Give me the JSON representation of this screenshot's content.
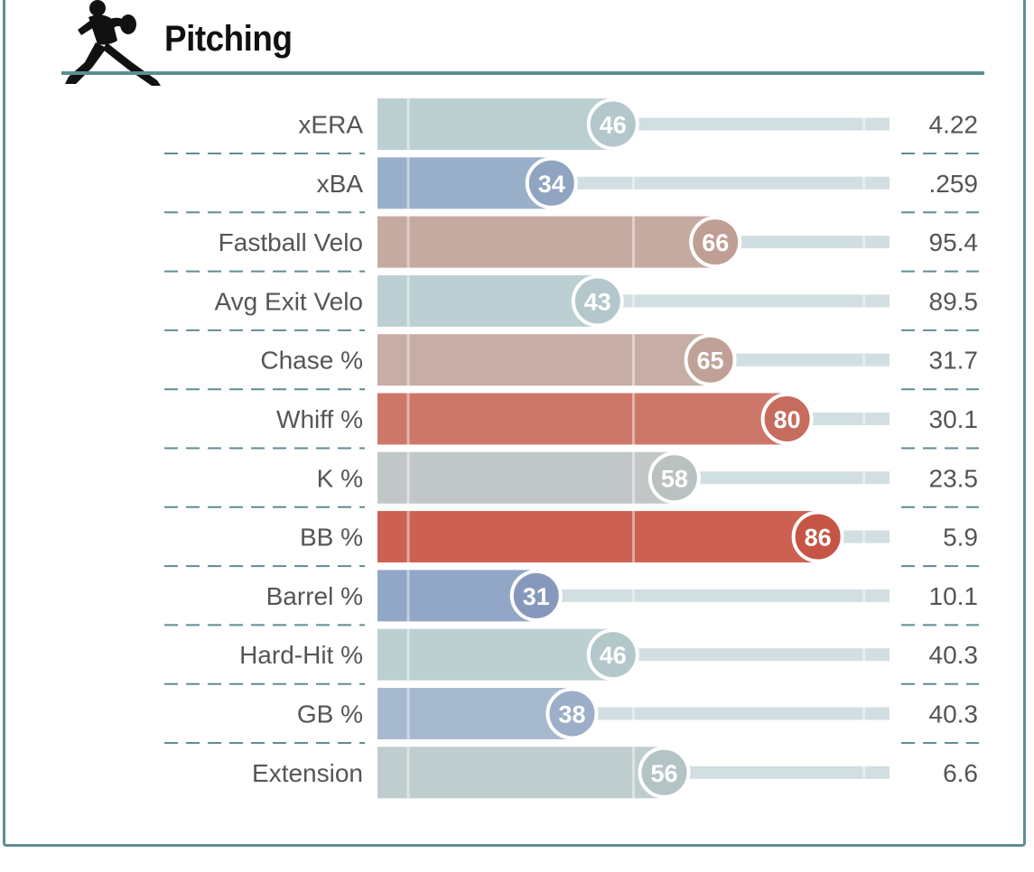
{
  "header": {
    "title": "Pitching"
  },
  "colors": {
    "border": "#5f8e93",
    "track": "#d1dfe2",
    "separator": "#5f8e93"
  },
  "chart_data": {
    "type": "bar",
    "orientation": "horizontal",
    "title": "Pitching",
    "xlim": [
      0,
      100
    ],
    "grid": true,
    "categories": [
      "xERA",
      "xBA",
      "Fastball Velo",
      "Avg Exit Velo",
      "Chase %",
      "Whiff %",
      "K %",
      "BB %",
      "Barrel %",
      "Hard-Hit %",
      "GB %",
      "Extension"
    ],
    "percentiles": [
      46,
      34,
      66,
      43,
      65,
      80,
      58,
      86,
      31,
      46,
      38,
      56
    ],
    "values": [
      "4.22",
      ".259",
      "95.4",
      "89.5",
      "31.7",
      "30.1",
      "23.5",
      "5.9",
      "10.1",
      "40.3",
      "40.3",
      "6.6"
    ],
    "bar_colors": [
      "#bccfd1",
      "#9aafc9",
      "#c5aaa2",
      "#bccfd2",
      "#c6ada5",
      "#cd7769",
      "#c1c7c7",
      "#cd6151",
      "#92a7c7",
      "#bccfd1",
      "#a7b9cf",
      "#bfcdcf"
    ],
    "badge_colors": [
      "#b4c8cb",
      "#8ea4c0",
      "#bf9e94",
      "#b4c8cc",
      "#c0a198",
      "#c66c5d",
      "#b9c1c1",
      "#c65545",
      "#8699bd",
      "#b4c8cb",
      "#9caec8",
      "#b4c4c6"
    ]
  }
}
